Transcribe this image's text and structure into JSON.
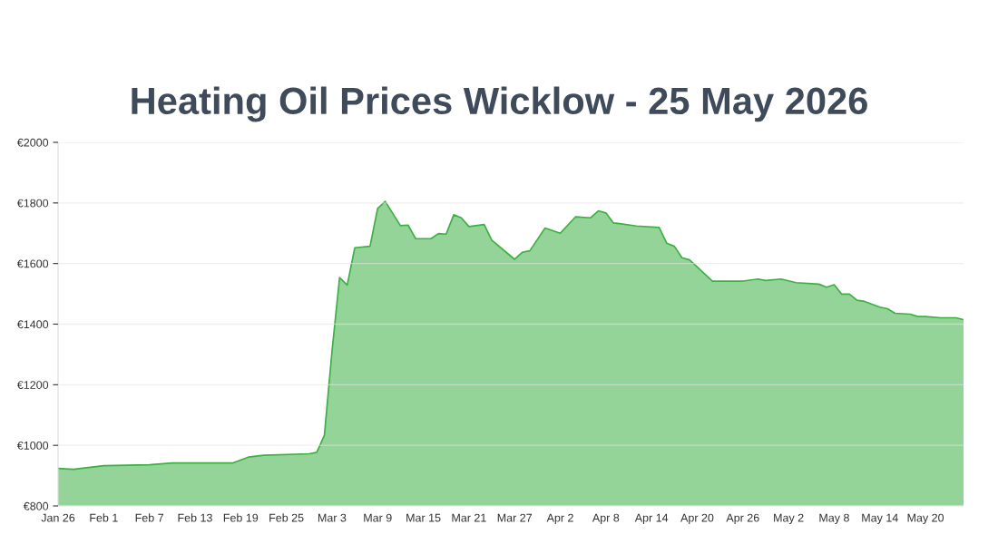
{
  "chart_data": {
    "type": "area",
    "title": "Heating Oil Prices Wicklow - 25 May 2026",
    "x": [
      "2026-01-26",
      "2026-01-28",
      "2026-02-01",
      "2026-02-07",
      "2026-02-10",
      "2026-02-18",
      "2026-02-20",
      "2026-02-22",
      "2026-02-28",
      "2026-03-01",
      "2026-03-02",
      "2026-03-03",
      "2026-03-04",
      "2026-03-05",
      "2026-03-06",
      "2026-03-08",
      "2026-03-09",
      "2026-03-10",
      "2026-03-12",
      "2026-03-13",
      "2026-03-14",
      "2026-03-16",
      "2026-03-17",
      "2026-03-18",
      "2026-03-19",
      "2026-03-20",
      "2026-03-21",
      "2026-03-23",
      "2026-03-24",
      "2026-03-27",
      "2026-03-28",
      "2026-03-29",
      "2026-03-31",
      "2026-04-02",
      "2026-04-04",
      "2026-04-06",
      "2026-04-07",
      "2026-04-08",
      "2026-04-09",
      "2026-04-10",
      "2026-04-12",
      "2026-04-15",
      "2026-04-16",
      "2026-04-17",
      "2026-04-18",
      "2026-04-19",
      "2026-04-22",
      "2026-04-26",
      "2026-04-28",
      "2026-04-29",
      "2026-05-01",
      "2026-05-03",
      "2026-05-06",
      "2026-05-07",
      "2026-05-08",
      "2026-05-09",
      "2026-05-10",
      "2026-05-11",
      "2026-05-12",
      "2026-05-14",
      "2026-05-15",
      "2026-05-16",
      "2026-05-18",
      "2026-05-19",
      "2026-05-20",
      "2026-05-22",
      "2026-05-24",
      "2026-05-25"
    ],
    "series": [
      {
        "color": "#3cb043",
        "values": [
          924,
          921,
          933,
          936,
          942,
          942,
          961,
          967,
          972,
          977,
          1033,
          1310,
          1554,
          1529,
          1652,
          1657,
          1782,
          1805,
          1725,
          1727,
          1682,
          1682,
          1699,
          1697,
          1761,
          1751,
          1722,
          1729,
          1677,
          1614,
          1637,
          1642,
          1717,
          1700,
          1754,
          1751,
          1774,
          1767,
          1734,
          1731,
          1724,
          1719,
          1667,
          1657,
          1619,
          1612,
          1542,
          1542,
          1549,
          1544,
          1549,
          1537,
          1532,
          1522,
          1530,
          1499,
          1499,
          1479,
          1475,
          1456,
          1451,
          1436,
          1433,
          1425,
          1425,
          1421,
          1421,
          1415
        ]
      }
    ],
    "xlim": [
      "2026-01-26",
      "2026-05-25"
    ],
    "xticks": [
      {
        "value": "2026-01-26",
        "label": "Jan 26"
      },
      {
        "value": "2026-02-01",
        "label": "Feb 1"
      },
      {
        "value": "2026-02-07",
        "label": "Feb 7"
      },
      {
        "value": "2026-02-13",
        "label": "Feb 13"
      },
      {
        "value": "2026-02-19",
        "label": "Feb 19"
      },
      {
        "value": "2026-02-25",
        "label": "Feb 25"
      },
      {
        "value": "2026-03-03",
        "label": "Mar 3"
      },
      {
        "value": "2026-03-09",
        "label": "Mar 9"
      },
      {
        "value": "2026-03-15",
        "label": "Mar 15"
      },
      {
        "value": "2026-03-21",
        "label": "Mar 21"
      },
      {
        "value": "2026-03-27",
        "label": "Mar 27"
      },
      {
        "value": "2026-04-02",
        "label": "Apr 2"
      },
      {
        "value": "2026-04-08",
        "label": "Apr 8"
      },
      {
        "value": "2026-04-14",
        "label": "Apr 14"
      },
      {
        "value": "2026-04-20",
        "label": "Apr 20"
      },
      {
        "value": "2026-04-26",
        "label": "Apr 26"
      },
      {
        "value": "2026-05-02",
        "label": "May 2"
      },
      {
        "value": "2026-05-08",
        "label": "May 8"
      },
      {
        "value": "2026-05-14",
        "label": "May 14"
      },
      {
        "value": "2026-05-20",
        "label": "May 20"
      }
    ],
    "ylim": [
      800,
      2000
    ],
    "yticks": [
      {
        "value": 800,
        "label": "€800"
      },
      {
        "value": 1000,
        "label": "€1000"
      },
      {
        "value": 1200,
        "label": "€1200"
      },
      {
        "value": 1400,
        "label": "€1400"
      },
      {
        "value": 1600,
        "label": "€1600"
      },
      {
        "value": 1800,
        "label": "€1800"
      },
      {
        "value": 2000,
        "label": "€2000"
      }
    ],
    "grid": "y",
    "marker": "none",
    "line_style": "solid"
  }
}
